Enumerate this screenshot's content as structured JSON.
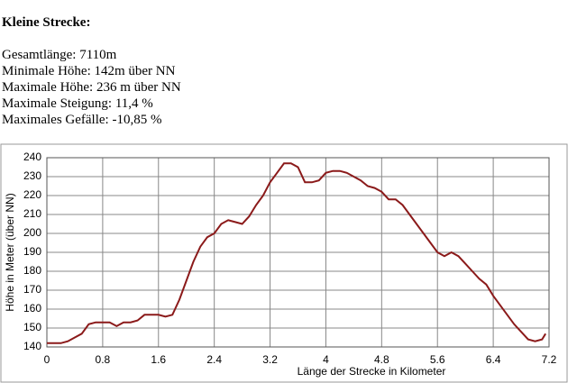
{
  "header": {
    "title": "Kleine Strecke:",
    "lines": [
      "Gesamtlänge: 7110m",
      "Minimale Höhe: 142m über NN",
      "Maximale Höhe: 236 m über NN",
      "Maximale Steigung: 11,4 %",
      "Maximales Gefälle: -10,85 %"
    ]
  },
  "chart_data": {
    "type": "line",
    "x_label": "Länge der Strecke in Kilometer",
    "y_label": "Höhe in Meter (über NN)",
    "x": [
      0,
      0.2,
      0.3,
      0.4,
      0.5,
      0.6,
      0.7,
      0.8,
      0.9,
      1.0,
      1.1,
      1.2,
      1.3,
      1.4,
      1.5,
      1.6,
      1.7,
      1.8,
      1.9,
      2.0,
      2.1,
      2.2,
      2.3,
      2.4,
      2.5,
      2.6,
      2.7,
      2.8,
      2.9,
      3.0,
      3.1,
      3.2,
      3.3,
      3.4,
      3.5,
      3.6,
      3.7,
      3.8,
      3.9,
      4.0,
      4.1,
      4.2,
      4.3,
      4.4,
      4.5,
      4.6,
      4.7,
      4.8,
      4.9,
      5.0,
      5.1,
      5.2,
      5.3,
      5.4,
      5.5,
      5.6,
      5.7,
      5.8,
      5.9,
      6.0,
      6.1,
      6.2,
      6.3,
      6.4,
      6.5,
      6.6,
      6.7,
      6.8,
      6.9,
      7.0,
      7.1,
      7.15
    ],
    "series": [
      {
        "name": "Höhe",
        "color": "#8b1a1a",
        "values": [
          142,
          142,
          143,
          145,
          147,
          152,
          153,
          153,
          153,
          151,
          153,
          153,
          154,
          157,
          157,
          157,
          156,
          157,
          165,
          175,
          185,
          193,
          198,
          200,
          205,
          207,
          206,
          205,
          209,
          215,
          220,
          227,
          232,
          237,
          237,
          235,
          227,
          227,
          228,
          232,
          233,
          233,
          232,
          230,
          228,
          225,
          224,
          222,
          218,
          218,
          215,
          210,
          205,
          200,
          195,
          190,
          188,
          190,
          188,
          184,
          180,
          176,
          173,
          167,
          162,
          157,
          152,
          148,
          144,
          143,
          144,
          147
        ]
      }
    ],
    "xlim": [
      0,
      7.2
    ],
    "xticks": [
      0,
      0.8,
      1.6,
      2.4,
      3.2,
      4.0,
      4.8,
      5.6,
      6.4,
      7.2
    ],
    "ylim": [
      140,
      240
    ],
    "yticks": [
      140,
      150,
      160,
      170,
      180,
      190,
      200,
      210,
      220,
      230,
      240
    ],
    "grid": true
  }
}
